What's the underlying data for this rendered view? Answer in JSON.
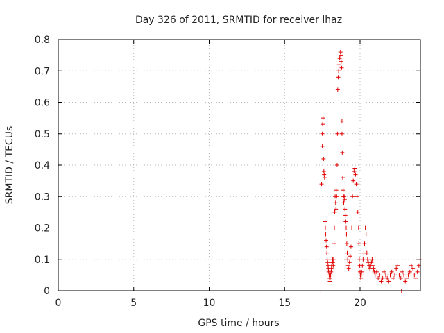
{
  "chart_data": {
    "type": "scatter",
    "title": "Day 326 of 2011, SRMTID for receiver lhaz",
    "xlabel": "GPS time / hours",
    "ylabel": "SRMTID / TECUs",
    "xlim": [
      0,
      24
    ],
    "ylim": [
      0,
      0.8
    ],
    "xticks": [
      0,
      5,
      10,
      15,
      20
    ],
    "xtick_labels": [
      "0",
      "5",
      "10",
      "15",
      "20"
    ],
    "yticks": [
      0,
      0.1,
      0.2,
      0.3,
      0.4,
      0.5,
      0.6,
      0.7,
      0.8
    ],
    "ytick_labels": [
      "0",
      "0.1",
      "0.2",
      "0.3",
      "0.4",
      "0.5",
      "0.6",
      "0.7",
      "0.8"
    ],
    "grid": true,
    "marker": "plus",
    "color": "#e00000",
    "series": [
      {
        "name": "SRMTID",
        "x": [
          17.45,
          17.5,
          17.5,
          17.52,
          17.55,
          17.58,
          17.6,
          17.62,
          17.65,
          17.68,
          17.7,
          17.72,
          17.75,
          17.78,
          17.8,
          17.82,
          17.85,
          17.88,
          17.9,
          17.92,
          17.95,
          17.98,
          18.0,
          18.02,
          18.05,
          18.08,
          18.1,
          18.12,
          18.15,
          18.18,
          18.2,
          18.22,
          18.25,
          18.28,
          18.3,
          18.32,
          18.35,
          18.38,
          18.4,
          18.42,
          18.45,
          18.48,
          18.5,
          18.52,
          18.55,
          18.58,
          18.6,
          18.65,
          18.7,
          18.72,
          18.75,
          18.78,
          18.8,
          18.8,
          18.82,
          18.85,
          18.88,
          18.9,
          18.92,
          18.95,
          18.98,
          19.0,
          19.02,
          19.05,
          19.08,
          19.1,
          19.12,
          19.15,
          19.18,
          19.2,
          19.25,
          19.3,
          19.35,
          19.4,
          19.45,
          19.5,
          19.55,
          19.6,
          19.65,
          19.7,
          19.75,
          19.8,
          19.85,
          19.9,
          19.92,
          19.95,
          19.98,
          20.0,
          20.02,
          20.05,
          20.08,
          20.1,
          20.15,
          20.2,
          20.25,
          20.3,
          20.35,
          20.4,
          20.45,
          20.5,
          20.55,
          20.6,
          20.65,
          20.7,
          20.75,
          20.8,
          20.85,
          20.9,
          20.95,
          21.0,
          21.1,
          21.2,
          21.3,
          21.4,
          21.5,
          21.6,
          21.7,
          21.8,
          21.9,
          22.0,
          22.1,
          22.2,
          22.3,
          22.4,
          22.5,
          22.6,
          22.7,
          22.8,
          22.9,
          23.0,
          23.1,
          23.2,
          23.3,
          23.4,
          23.5,
          23.6,
          23.7,
          23.8,
          23.9,
          24.0,
          22.75,
          17.4
        ],
        "y": [
          0.34,
          0.46,
          0.5,
          0.53,
          0.55,
          0.42,
          0.38,
          0.37,
          0.36,
          0.22,
          0.2,
          0.18,
          0.16,
          0.14,
          0.12,
          0.1,
          0.09,
          0.08,
          0.07,
          0.06,
          0.05,
          0.04,
          0.03,
          0.04,
          0.05,
          0.06,
          0.07,
          0.08,
          0.09,
          0.1,
          0.09,
          0.08,
          0.1,
          0.15,
          0.2,
          0.25,
          0.3,
          0.28,
          0.26,
          0.32,
          0.3,
          0.4,
          0.5,
          0.64,
          0.68,
          0.7,
          0.72,
          0.74,
          0.76,
          0.75,
          0.73,
          0.71,
          0.54,
          0.5,
          0.44,
          0.36,
          0.32,
          0.3,
          0.28,
          0.3,
          0.29,
          0.26,
          0.24,
          0.22,
          0.2,
          0.18,
          0.15,
          0.12,
          0.1,
          0.08,
          0.07,
          0.09,
          0.11,
          0.14,
          0.2,
          0.3,
          0.35,
          0.38,
          0.39,
          0.37,
          0.34,
          0.3,
          0.25,
          0.2,
          0.15,
          0.1,
          0.08,
          0.06,
          0.05,
          0.04,
          0.05,
          0.06,
          0.08,
          0.1,
          0.12,
          0.15,
          0.2,
          0.18,
          0.12,
          0.1,
          0.09,
          0.08,
          0.07,
          0.08,
          0.09,
          0.1,
          0.08,
          0.07,
          0.06,
          0.05,
          0.06,
          0.04,
          0.05,
          0.03,
          0.04,
          0.06,
          0.05,
          0.04,
          0.03,
          0.05,
          0.06,
          0.04,
          0.05,
          0.07,
          0.08,
          0.05,
          0.04,
          0.06,
          0.05,
          0.03,
          0.04,
          0.05,
          0.06,
          0.08,
          0.07,
          0.05,
          0.04,
          0.06,
          0.08,
          0.1,
          0.0,
          0.0
        ]
      }
    ]
  }
}
